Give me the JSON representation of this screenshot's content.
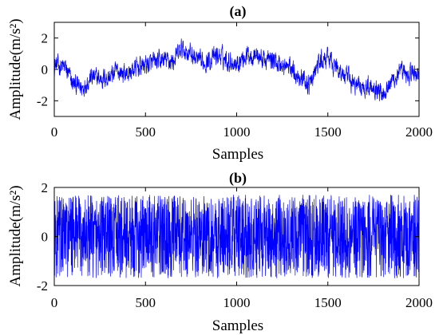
{
  "chart_data": [
    {
      "type": "line",
      "title": "(a)",
      "xlabel": "Samples",
      "ylabel": "Amplitude(m/s²)",
      "xlim": [
        0,
        2000
      ],
      "ylim": [
        -3,
        3
      ],
      "xticks": [
        0,
        500,
        1000,
        1500,
        2000
      ],
      "yticks": [
        -2,
        0,
        2
      ],
      "xtick_labels": [
        "0",
        "500",
        "1000",
        "1500",
        "2000"
      ],
      "ytick_labels": [
        "-2",
        "0",
        "2"
      ],
      "grid": false,
      "color": "#0000ff",
      "trend": {
        "x": [
          0,
          60,
          100,
          150,
          200,
          250,
          300,
          350,
          400,
          450,
          500,
          550,
          600,
          650,
          700,
          750,
          800,
          850,
          900,
          950,
          1000,
          1050,
          1100,
          1150,
          1200,
          1250,
          1300,
          1350,
          1400,
          1450,
          1500,
          1550,
          1600,
          1650,
          1700,
          1750,
          1800,
          1850,
          1900,
          1950,
          2000
        ],
        "y": [
          0.3,
          0.1,
          -0.9,
          -1.2,
          -0.5,
          -0.6,
          -0.5,
          -0.1,
          -0.3,
          0.1,
          0.3,
          0.4,
          0.6,
          0.5,
          1.3,
          1.0,
          0.4,
          0.6,
          0.9,
          0.6,
          0.4,
          0.9,
          1.0,
          0.6,
          0.6,
          0.2,
          0.1,
          -0.5,
          -1.0,
          0.4,
          0.7,
          0.1,
          -0.5,
          -1.0,
          -1.1,
          -1.0,
          -1.5,
          -0.7,
          -0.3,
          -0.3,
          -0.2
        ]
      },
      "noise_amplitude": 0.5,
      "range_min": -2.9,
      "range_max": 2.8
    },
    {
      "type": "line",
      "title": "(b)",
      "xlabel": "Samples",
      "ylabel": "Amplitude(m/s²)",
      "xlim": [
        0,
        2000
      ],
      "ylim": [
        -2,
        2
      ],
      "xticks": [
        0,
        500,
        1000,
        1500,
        2000
      ],
      "yticks": [
        -2,
        0,
        2
      ],
      "xtick_labels": [
        "0",
        "500",
        "1000",
        "1500",
        "2000"
      ],
      "ytick_labels": [
        "-2",
        "0",
        "2"
      ],
      "grid": false,
      "color": "#0000ff",
      "amplitude": 1.7
    }
  ]
}
